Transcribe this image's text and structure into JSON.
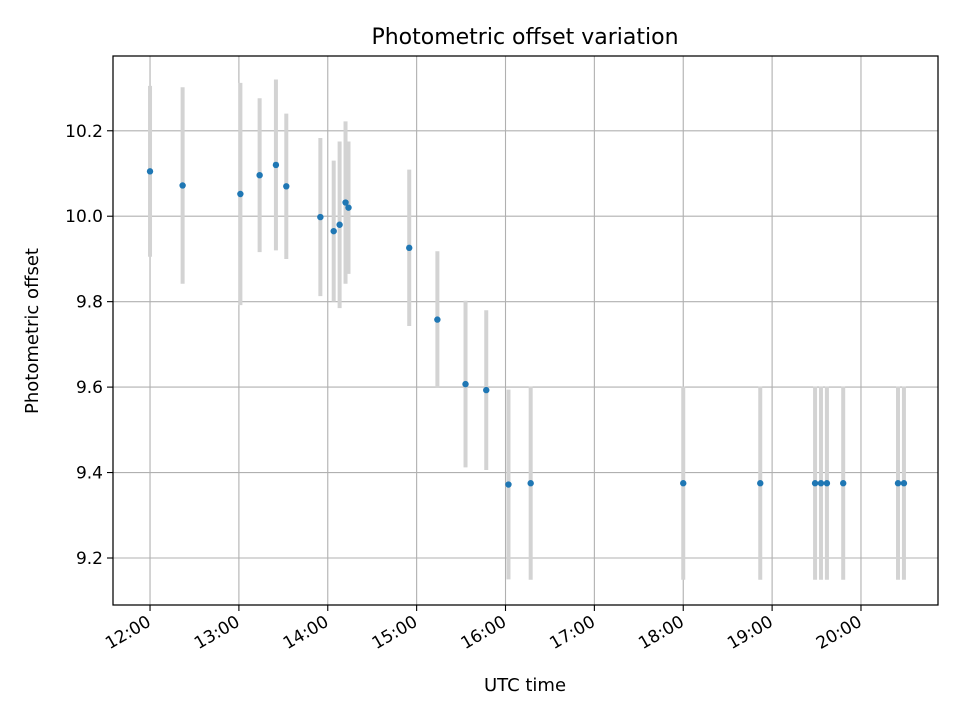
{
  "chart_data": {
    "type": "scatter",
    "title": "Photometric offset variation",
    "xlabel": "UTC time",
    "ylabel": "Photometric offset",
    "grid": true,
    "xlim": [
      "11:35",
      "20:52"
    ],
    "ylim": [
      9.09,
      10.375
    ],
    "xticks": [
      "12:00",
      "13:00",
      "14:00",
      "15:00",
      "16:00",
      "17:00",
      "18:00",
      "19:00",
      "20:00"
    ],
    "yticks": [
      "9.2",
      "9.4",
      "9.6",
      "9.8",
      "10.0",
      "10.2"
    ],
    "colors": {
      "point": "#1f77b4",
      "errorbar": "#d3d3d3",
      "grid": "#b0b0b0"
    },
    "series": [
      {
        "points": [
          {
            "x": "12:00",
            "y": 10.105,
            "err": 0.2
          },
          {
            "x": "12:22",
            "y": 10.072,
            "err": 0.23
          },
          {
            "x": "13:01",
            "y": 10.052,
            "err": 0.26
          },
          {
            "x": "13:14",
            "y": 10.096,
            "err": 0.18
          },
          {
            "x": "13:25",
            "y": 10.12,
            "err": 0.2
          },
          {
            "x": "13:32",
            "y": 10.07,
            "err": 0.17
          },
          {
            "x": "13:55",
            "y": 9.998,
            "err": 0.185
          },
          {
            "x": "14:04",
            "y": 9.965,
            "err": 0.165
          },
          {
            "x": "14:08",
            "y": 9.98,
            "err": 0.195
          },
          {
            "x": "14:12",
            "y": 10.032,
            "err": 0.19
          },
          {
            "x": "14:14",
            "y": 10.02,
            "err": 0.155
          },
          {
            "x": "14:55",
            "y": 9.926,
            "err": 0.183
          },
          {
            "x": "15:14",
            "y": 9.758,
            "err": 0.16
          },
          {
            "x": "15:33",
            "y": 9.607,
            "err": 0.195
          },
          {
            "x": "15:47",
            "y": 9.593,
            "err": 0.187
          },
          {
            "x": "16:02",
            "y": 9.372,
            "err": 0.222
          },
          {
            "x": "16:17",
            "y": 9.375,
            "err": 0.226
          },
          {
            "x": "18:00",
            "y": 9.375,
            "err": 0.226
          },
          {
            "x": "18:52",
            "y": 9.375,
            "err": 0.226
          },
          {
            "x": "19:29",
            "y": 9.375,
            "err": 0.226
          },
          {
            "x": "19:33",
            "y": 9.375,
            "err": 0.226
          },
          {
            "x": "19:37",
            "y": 9.375,
            "err": 0.226
          },
          {
            "x": "19:48",
            "y": 9.375,
            "err": 0.226
          },
          {
            "x": "20:25",
            "y": 9.375,
            "err": 0.226
          },
          {
            "x": "20:29",
            "y": 9.375,
            "err": 0.226
          }
        ]
      }
    ]
  }
}
